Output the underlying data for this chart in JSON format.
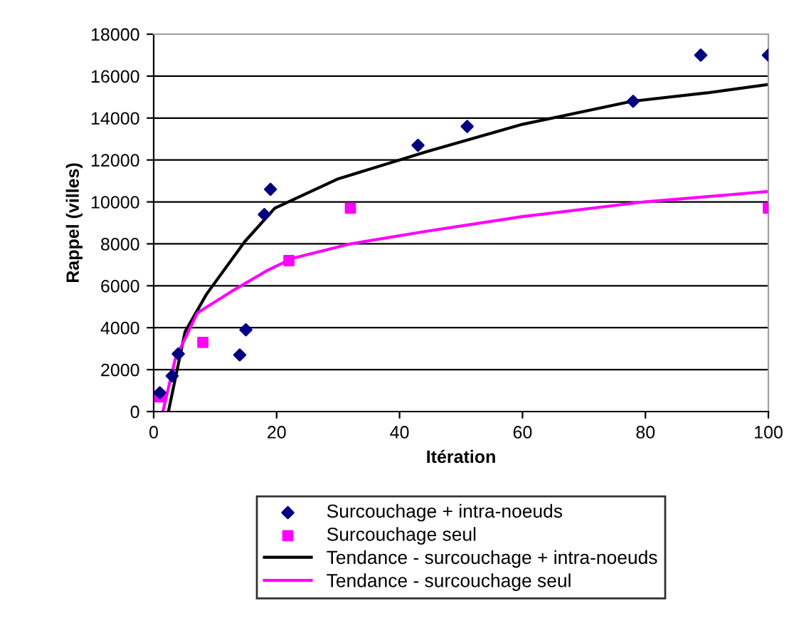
{
  "chart_data": {
    "type": "scatter",
    "xlabel": "Itération",
    "ylabel": "Rappel (villes)",
    "xlim": [
      0,
      100
    ],
    "ylim": [
      0,
      18000
    ],
    "xticks": [
      0,
      20,
      40,
      60,
      80,
      100
    ],
    "yticks": [
      0,
      2000,
      4000,
      6000,
      8000,
      10000,
      12000,
      14000,
      16000,
      18000
    ],
    "grid": "y",
    "legend": "bottom",
    "series": [
      {
        "name": "Surcouchage + intra-noeuds",
        "marker": "diamond",
        "color": "#000080",
        "x": [
          1,
          3,
          4,
          14,
          15,
          18,
          19,
          43,
          51,
          78,
          89,
          100
        ],
        "values": [
          900,
          1700,
          2750,
          2700,
          3900,
          9400,
          10600,
          12700,
          13600,
          14800,
          17000,
          17000
        ]
      },
      {
        "name": "Surcouchage seul",
        "marker": "square",
        "color": "#ff00ff",
        "x": [
          1,
          8,
          22,
          32,
          100
        ],
        "values": [
          700,
          3300,
          7200,
          9700,
          9700
        ]
      },
      {
        "name": "Tendance - surcouchage + intra-noeuds",
        "type": "line",
        "marker": "none",
        "color": "#000000",
        "x": [
          2.4,
          5.1,
          8.6,
          14.8,
          19.7,
          30,
          44.4,
          60,
          77.8,
          90,
          100
        ],
        "values": [
          0,
          3800,
          5600,
          8100,
          9700,
          11100,
          12400,
          13700,
          14800,
          15200,
          15600
        ]
      },
      {
        "name": "Tendance - surcouchage seul",
        "type": "line",
        "marker": "none",
        "color": "#ff00ff",
        "x": [
          1.5,
          3.5,
          7.1,
          12.5,
          18.3,
          22.5,
          32,
          44.4,
          60,
          79.8,
          100
        ],
        "values": [
          0,
          2500,
          4700,
          5700,
          6700,
          7300,
          8000,
          8600,
          9300,
          10000,
          10500
        ]
      }
    ]
  }
}
